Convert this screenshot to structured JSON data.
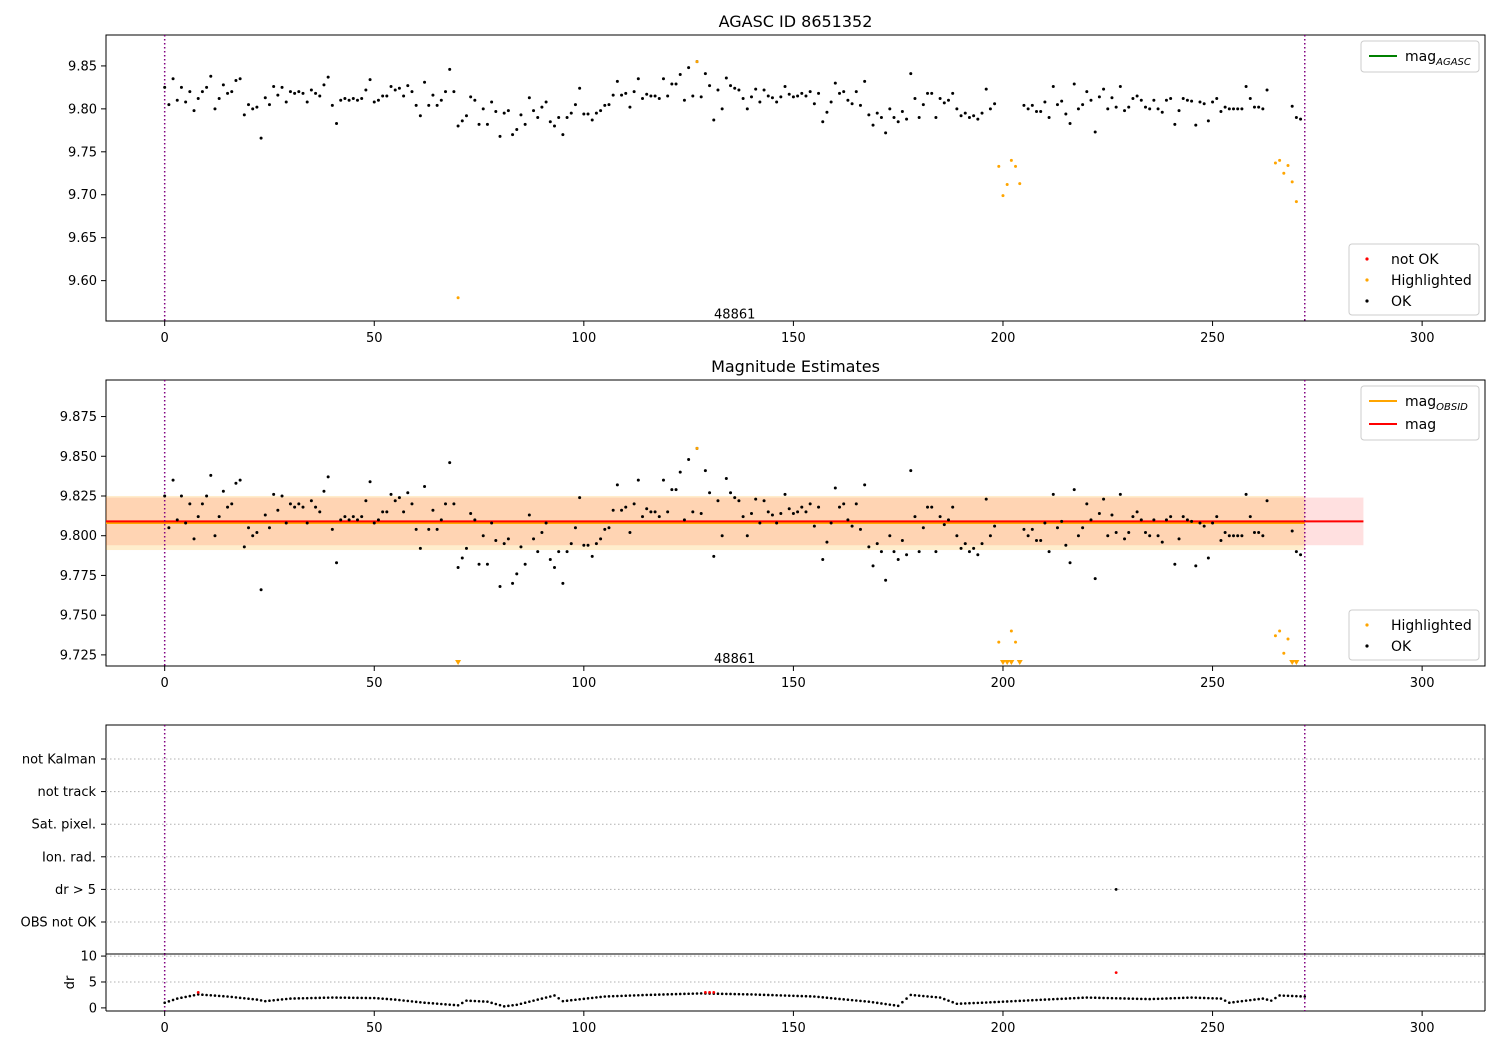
{
  "chart_data": [
    {
      "type": "scatter",
      "title": "AGASC ID 8651352",
      "xlabel": "",
      "ylabel": "",
      "xlim": [
        -14,
        315
      ],
      "ylim": [
        9.553,
        9.886
      ],
      "xticks": [
        0,
        50,
        100,
        150,
        200,
        250,
        300
      ],
      "yticks": [
        9.6,
        9.65,
        9.7,
        9.75,
        9.8,
        9.85
      ],
      "ytick_labels": [
        "9.60",
        "9.65",
        "9.70",
        "9.75",
        "9.80",
        "9.85"
      ],
      "annotation": {
        "text": "48861",
        "x": 136,
        "y": 9.556
      },
      "vlines": {
        "color": "#800080",
        "style": "dotted",
        "x": [
          0,
          272
        ]
      },
      "line_legend": {
        "placement": "top-right",
        "entries": [
          {
            "label": "mag",
            "subscript": "AGASC",
            "color": "#008000"
          }
        ]
      },
      "scatter_legend": {
        "placement": "lower-right",
        "entries": [
          {
            "label": "not OK",
            "color": "#ff0000"
          },
          {
            "label": "Highlighted",
            "color": "#ffa500"
          },
          {
            "label": "OK",
            "color": "#000000"
          }
        ]
      },
      "series": [
        {
          "name": "OK",
          "color": "#000000",
          "base": [
            9.825,
            9.805,
            9.835,
            9.81,
            9.825,
            9.808,
            9.82,
            9.798,
            9.812,
            9.82,
            9.825,
            9.838,
            9.8,
            9.812,
            9.828,
            9.818,
            9.82,
            9.833,
            9.835,
            9.793,
            9.805,
            9.8,
            9.802,
            9.766,
            9.813,
            9.805,
            9.826,
            9.816,
            9.825,
            9.808,
            9.82,
            9.818,
            9.82,
            9.818,
            9.808,
            9.822,
            9.818,
            9.815,
            9.828,
            9.837,
            9.804,
            9.783,
            9.81,
            9.812,
            9.81,
            9.812,
            9.81,
            9.812,
            9.822,
            9.834,
            9.808,
            9.81,
            9.815,
            9.815,
            9.826,
            9.822,
            9.824,
            9.815,
            9.827,
            9.82,
            9.804,
            9.792,
            9.831,
            9.804,
            9.816,
            9.804,
            9.81,
            9.82,
            9.846,
            9.82,
            9.78,
            9.786,
            9.792,
            9.814,
            9.81,
            9.782,
            9.8,
            9.782,
            9.808,
            9.797,
            9.768,
            9.795,
            9.798,
            9.77,
            9.776,
            9.793,
            9.782,
            9.813,
            9.798,
            9.79,
            9.802,
            9.808,
            9.785,
            9.78,
            9.79,
            9.77,
            9.79,
            9.795,
            9.805,
            9.824,
            9.794,
            9.794,
            9.787,
            9.795,
            9.798,
            9.804,
            9.805,
            9.816,
            9.832,
            9.816,
            9.818,
            9.802,
            9.82,
            9.835,
            9.812,
            9.817,
            9.815,
            9.815,
            9.812,
            9.835,
            9.815,
            9.829,
            9.829,
            9.84,
            9.81,
            9.848,
            9.815,
            9.855,
            9.814,
            9.841,
            9.827,
            9.787,
            9.822,
            9.8,
            9.836,
            9.827,
            9.824,
            9.822,
            9.812,
            9.8,
            9.814,
            9.823,
            9.808,
            9.822,
            9.815,
            9.813,
            9.808,
            9.814,
            9.826,
            9.817,
            9.814,
            9.815,
            9.818,
            9.815,
            9.82,
            9.806,
            9.818,
            9.785,
            9.796,
            9.808,
            9.83,
            9.818,
            9.82,
            9.81,
            9.806,
            9.82,
            9.804,
            9.832,
            9.793,
            9.781,
            9.795,
            9.79,
            9.772,
            9.8,
            9.79,
            9.785,
            9.797,
            9.788,
            9.841,
            9.812,
            9.79,
            9.805,
            9.818,
            9.818,
            9.79,
            9.812,
            9.807,
            9.81,
            9.818,
            9.8,
            9.792,
            9.795,
            9.79,
            9.792,
            9.788,
            9.795,
            9.823,
            9.8,
            9.806,
            null,
            null,
            null,
            null,
            null,
            null,
            9.804,
            9.8,
            9.804,
            9.797,
            9.797,
            9.808,
            9.79,
            9.826,
            9.805,
            9.809,
            9.794,
            9.783,
            9.829,
            9.8,
            9.805,
            9.82,
            9.81,
            9.773,
            9.814,
            9.823,
            9.8,
            9.813,
            9.802,
            9.826,
            9.798,
            9.802,
            9.812,
            9.815,
            9.81,
            9.802,
            9.8,
            9.81,
            9.8,
            9.796,
            9.81,
            9.812,
            9.782,
            9.798,
            9.812,
            9.81,
            9.809,
            9.781,
            9.808,
            9.806,
            9.786,
            9.808,
            9.812,
            9.797,
            9.802,
            9.8,
            9.8,
            9.8,
            9.8,
            9.826,
            9.812,
            9.802,
            9.802,
            9.8,
            9.822,
            null,
            null,
            null,
            null,
            null,
            9.803,
            9.79,
            9.788
          ]
        },
        {
          "name": "Highlighted",
          "color": "#ffa500",
          "points": [
            [
              70,
              9.58
            ],
            [
              127,
              9.855
            ],
            [
              199,
              9.733
            ],
            [
              200,
              9.699
            ],
            [
              201,
              9.712
            ],
            [
              202,
              9.74
            ],
            [
              203,
              9.733
            ],
            [
              204,
              9.713
            ],
            [
              265,
              9.737
            ],
            [
              266,
              9.74
            ],
            [
              267,
              9.725
            ],
            [
              268,
              9.734
            ],
            [
              269,
              9.715
            ],
            [
              270,
              9.692
            ]
          ]
        }
      ]
    },
    {
      "type": "scatter",
      "title": "Magnitude Estimates",
      "xlabel": "",
      "ylabel": "",
      "xlim": [
        -14,
        315
      ],
      "ylim": [
        9.718,
        9.898
      ],
      "xticks": [
        0,
        50,
        100,
        150,
        200,
        250,
        300
      ],
      "yticks": [
        9.725,
        9.75,
        9.775,
        9.8,
        9.825,
        9.85,
        9.875
      ],
      "ytick_labels": [
        "9.725",
        "9.750",
        "9.775",
        "9.800",
        "9.825",
        "9.850",
        "9.875"
      ],
      "annotation": {
        "text": "48861",
        "x": 136,
        "y": 9.72
      },
      "vlines": {
        "color": "#800080",
        "style": "dotted",
        "x": [
          0,
          272
        ]
      },
      "mag_band": {
        "center": 9.809,
        "lower": 9.794,
        "upper": 9.824,
        "x_range": [
          -14,
          286
        ],
        "color": "#ff0000"
      },
      "obsid_band": {
        "center": 9.808,
        "lower": 9.791,
        "upper": 9.825,
        "x_range": [
          -14,
          272
        ],
        "color": "#ffa500"
      },
      "off_scale_markers": [
        70,
        200,
        201,
        202,
        204,
        269,
        270
      ],
      "line_legend": {
        "placement": "top-right",
        "entries": [
          {
            "label": "mag",
            "subscript": "OBSID",
            "color": "#ffa500"
          },
          {
            "label": "mag",
            "subscript": "",
            "color": "#ff0000"
          }
        ]
      },
      "scatter_legend": {
        "placement": "lower-right",
        "entries": [
          {
            "label": "Highlighted",
            "color": "#ffa500"
          },
          {
            "label": "OK",
            "color": "#000000"
          }
        ]
      },
      "series": [
        {
          "name": "OK",
          "color": "#000000",
          "same_as_panel": 0
        },
        {
          "name": "Highlighted",
          "color": "#ffa500",
          "points": [
            [
              127,
              9.855
            ],
            [
              199,
              9.733
            ],
            [
              202,
              9.74
            ],
            [
              203,
              9.733
            ],
            [
              265,
              9.737
            ],
            [
              266,
              9.74
            ],
            [
              267,
              9.726
            ],
            [
              268,
              9.735
            ]
          ]
        }
      ]
    },
    {
      "type": "scatter",
      "title": "",
      "xlim": [
        -14,
        315
      ],
      "categories": [
        "not Kalman",
        "not track",
        "Sat. pixel.",
        "Ion. rad.",
        "dr > 5",
        "OBS not OK"
      ],
      "vlines": {
        "color": "#800080",
        "style": "dotted",
        "x": [
          0,
          272
        ]
      },
      "series": [
        {
          "name": "",
          "color": "#000000",
          "points": [
            [
              227,
              "dr > 5"
            ]
          ]
        }
      ]
    },
    {
      "type": "scatter",
      "title": "",
      "xlabel": "",
      "ylabel": "dr",
      "xlim": [
        -14,
        315
      ],
      "ylim": [
        -0.6,
        10.4
      ],
      "xticks": [
        0,
        50,
        100,
        150,
        200,
        250,
        300
      ],
      "yticks": [
        0,
        5,
        10
      ],
      "ytick_labels": [
        "0",
        "5",
        "10"
      ],
      "vlines": {
        "color": "#800080",
        "style": "dotted",
        "x": [
          0,
          272
        ]
      },
      "series": [
        {
          "name": "",
          "color": "#000000",
          "pattern": "smooth dr profile ≈ 0.3–3.0 sampled at every integer x from 0 to 272"
        },
        {
          "name": "",
          "color": "#ff0000",
          "points": [
            [
              8,
              3.0
            ],
            [
              129,
              3.0
            ],
            [
              130,
              3.0
            ],
            [
              131,
              3.0
            ],
            [
              227,
              6.8
            ]
          ]
        }
      ]
    }
  ]
}
